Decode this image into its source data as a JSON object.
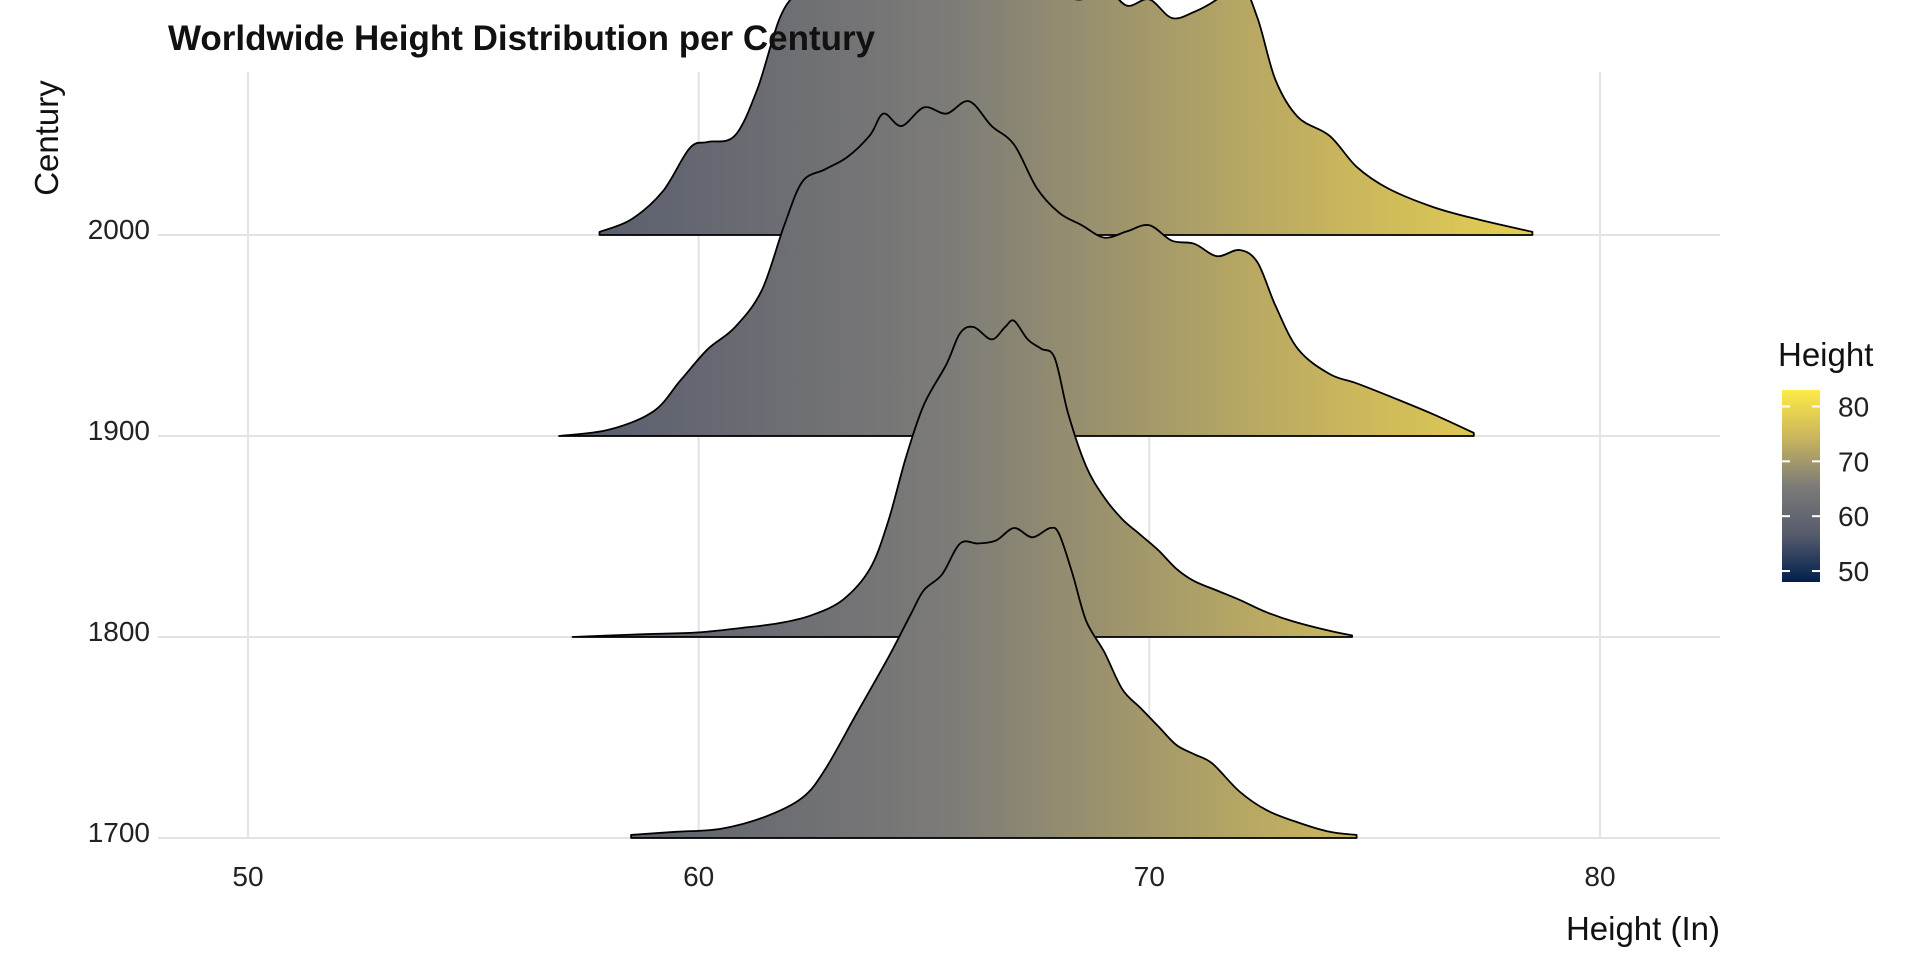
{
  "chart_data": {
    "type": "ridgeline",
    "title": "Worldwide Height Distribution per Century",
    "xlabel": "Height (In)",
    "ylabel": "Century",
    "xlim": [
      48.5,
      82.8
    ],
    "x_ticks": [
      50,
      60,
      70,
      80
    ],
    "categories": [
      "1700",
      "1800",
      "1900",
      "2000"
    ],
    "grid": true,
    "legend": {
      "title": "Height",
      "position": "right",
      "type": "colorbar",
      "ticks": [
        50,
        60,
        70,
        80
      ],
      "range": [
        48,
        83
      ],
      "colors": [
        "#00204d",
        "#575c6d",
        "#7c7b78",
        "#c9b55d",
        "#ffea46"
      ]
    },
    "fill_scale": {
      "min": 48,
      "max": 83
    },
    "series": [
      {
        "name": "1700",
        "x": [
          58.5,
          59.5,
          60.5,
          61.5,
          62.3,
          62.8,
          63.5,
          64.2,
          64.7,
          65.0,
          65.4,
          65.8,
          66.2,
          66.6,
          67.0,
          67.4,
          67.8,
          68.0,
          68.3,
          68.6,
          69.0,
          69.4,
          69.8,
          70.2,
          70.6,
          71.0,
          71.4,
          72.0,
          72.6,
          73.3,
          74.0,
          74.6
        ],
        "y": [
          0.01,
          0.02,
          0.03,
          0.07,
          0.13,
          0.22,
          0.4,
          0.58,
          0.72,
          0.8,
          0.85,
          0.95,
          0.95,
          0.96,
          1.0,
          0.97,
          1.0,
          0.98,
          0.85,
          0.7,
          0.6,
          0.48,
          0.42,
          0.36,
          0.3,
          0.27,
          0.24,
          0.15,
          0.09,
          0.05,
          0.02,
          0.01
        ]
      },
      {
        "name": "1800",
        "x": [
          57.2,
          58.0,
          59.0,
          60.0,
          61.0,
          61.8,
          62.5,
          63.2,
          63.8,
          64.2,
          64.6,
          65.0,
          65.5,
          65.8,
          66.1,
          66.5,
          66.8,
          67.0,
          67.3,
          67.6,
          67.9,
          68.2,
          68.6,
          69.0,
          69.4,
          69.8,
          70.2,
          70.6,
          71.0,
          71.5,
          72.0,
          72.6,
          73.2,
          74.0,
          74.5
        ],
        "y": [
          0.0,
          0.005,
          0.01,
          0.015,
          0.03,
          0.045,
          0.07,
          0.12,
          0.22,
          0.37,
          0.58,
          0.75,
          0.88,
          0.98,
          1.0,
          0.96,
          1.0,
          1.02,
          0.96,
          0.93,
          0.9,
          0.72,
          0.55,
          0.45,
          0.38,
          0.33,
          0.28,
          0.22,
          0.18,
          0.15,
          0.12,
          0.08,
          0.05,
          0.02,
          0.005
        ]
      },
      {
        "name": "1900",
        "x": [
          56.9,
          58.0,
          59.0,
          59.6,
          60.2,
          60.8,
          61.4,
          61.9,
          62.3,
          62.8,
          63.3,
          63.8,
          64.1,
          64.5,
          65.0,
          65.5,
          66.0,
          66.5,
          67.0,
          67.5,
          68.0,
          68.5,
          69.0,
          69.5,
          70.0,
          70.5,
          71.0,
          71.5,
          72.0,
          72.4,
          72.8,
          73.3,
          74.0,
          74.6,
          75.3,
          76.3,
          77.2
        ],
        "y": [
          0.0,
          0.02,
          0.08,
          0.18,
          0.28,
          0.35,
          0.47,
          0.68,
          0.82,
          0.86,
          0.9,
          0.97,
          1.04,
          1.0,
          1.06,
          1.04,
          1.08,
          1.0,
          0.94,
          0.8,
          0.72,
          0.68,
          0.64,
          0.66,
          0.68,
          0.63,
          0.62,
          0.58,
          0.6,
          0.56,
          0.42,
          0.28,
          0.2,
          0.17,
          0.13,
          0.07,
          0.01
        ]
      },
      {
        "name": "2000",
        "x": [
          57.8,
          58.5,
          59.2,
          59.8,
          60.2,
          60.8,
          61.3,
          61.8,
          62.2,
          62.6,
          63.0,
          63.5,
          64.0,
          64.4,
          64.8,
          65.2,
          65.6,
          66.0,
          66.5,
          67.0,
          67.5,
          68.0,
          68.5,
          69.0,
          69.5,
          70.0,
          70.5,
          71.0,
          71.5,
          72.0,
          72.4,
          72.8,
          73.3,
          74.0,
          74.6,
          75.3,
          76.3,
          77.3,
          78.5
        ],
        "y": [
          0.01,
          0.05,
          0.14,
          0.28,
          0.3,
          0.32,
          0.47,
          0.7,
          0.78,
          0.79,
          0.83,
          0.86,
          0.95,
          0.9,
          0.78,
          0.78,
          0.9,
          1.02,
          0.96,
          0.92,
          0.84,
          0.78,
          0.76,
          0.8,
          0.74,
          0.76,
          0.7,
          0.72,
          0.76,
          0.82,
          0.7,
          0.5,
          0.38,
          0.32,
          0.22,
          0.15,
          0.09,
          0.05,
          0.01
        ]
      }
    ]
  }
}
